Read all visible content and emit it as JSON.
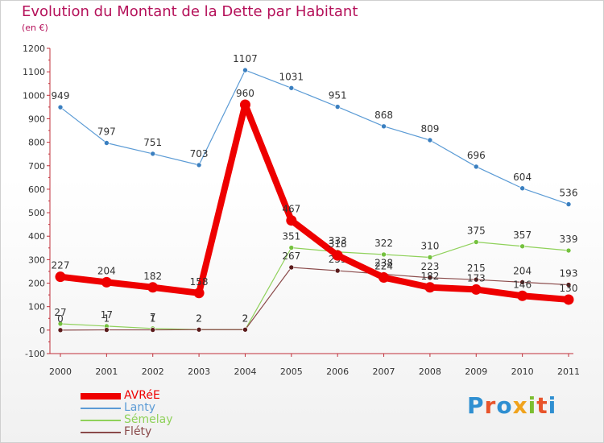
{
  "title": "Evolution du Montant de la Dette par Habitant",
  "subtitle": "(en €)",
  "logo": {
    "text": "Proxiti",
    "colors": [
      "#2f8fd1",
      "#e8542b",
      "#2f8fd1",
      "#f0a31d",
      "#7cbe31",
      "#e8542b",
      "#2f8fd1"
    ]
  },
  "chart_data": {
    "type": "line",
    "title": "Evolution du Montant de la Dette par Habitant",
    "ylabel": "(en €)",
    "xlabel": "",
    "ylim": [
      -100,
      1200
    ],
    "yticks": [
      -100,
      0,
      100,
      200,
      300,
      400,
      500,
      600,
      700,
      800,
      900,
      1000,
      1100,
      1200
    ],
    "x": [
      "2000",
      "2001",
      "2002",
      "2003",
      "2004",
      "2005",
      "2006",
      "2007",
      "2008",
      "2009",
      "2010",
      "2011"
    ],
    "grid": false,
    "legend_position": "bottom-left",
    "series": [
      {
        "name": "Lanty",
        "color": "#5b9bd5",
        "marker": "#3a7fc0",
        "width": "thin",
        "values": [
          949,
          797,
          751,
          703,
          1107,
          1031,
          951,
          868,
          809,
          696,
          604,
          536
        ]
      },
      {
        "name": "Sémelay",
        "color": "#8fd15a",
        "marker": "#74c13e",
        "width": "thin",
        "values": [
          27,
          17,
          7,
          2,
          2,
          351,
          333,
          322,
          310,
          375,
          357,
          339
        ]
      },
      {
        "name": "Fléty",
        "color": "#8a4a4a",
        "marker": "#5a1a1a",
        "width": "thin",
        "values": [
          0,
          1,
          1,
          2,
          2,
          267,
          253,
          238,
          223,
          215,
          204,
          193
        ]
      },
      {
        "name": "AVRéE",
        "color": "#ee0000",
        "marker": "#ee0000",
        "width": "thick",
        "values": [
          227,
          204,
          182,
          158,
          960,
          467,
          318,
          224,
          182,
          173,
          146,
          130
        ]
      }
    ],
    "legend_order": [
      "AVRéE",
      "Lanty",
      "Sémelay",
      "Fléty"
    ]
  }
}
